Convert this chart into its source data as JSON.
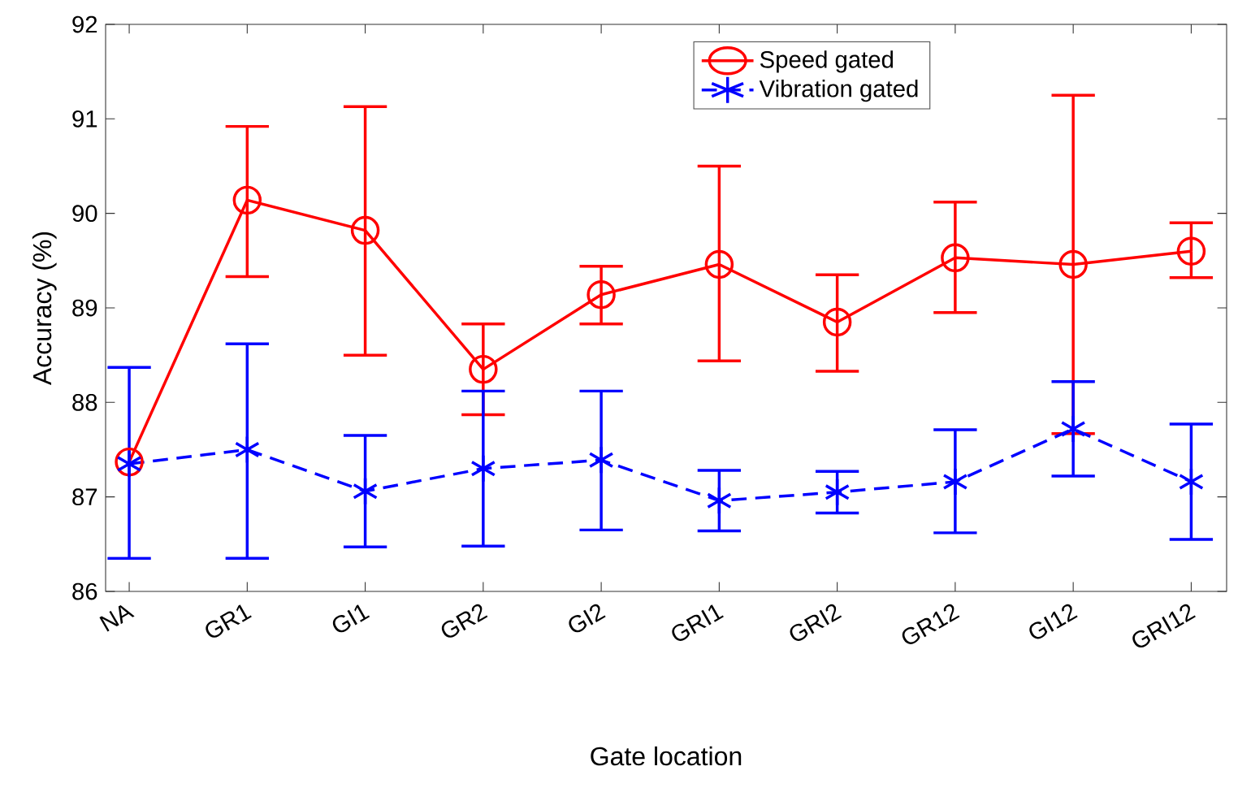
{
  "chart_data": {
    "type": "line",
    "xlabel": "Gate location",
    "ylabel": "Accuracy (%)",
    "categories": [
      "NA",
      "GR1",
      "GI1",
      "GR2",
      "GI2",
      "GRI1",
      "GRI2",
      "GR12",
      "GI12",
      "GRI12"
    ],
    "series": [
      {
        "name": "Speed gated",
        "color": "#ff0000",
        "marker": "circle",
        "line_style": "solid",
        "values": [
          87.37,
          90.14,
          89.82,
          88.35,
          89.14,
          89.46,
          88.85,
          89.53,
          89.46,
          89.6
        ],
        "errors": [
          null,
          [
            89.33,
            90.92
          ],
          [
            88.5,
            91.13
          ],
          [
            87.87,
            88.83
          ],
          [
            88.83,
            89.44
          ],
          [
            88.44,
            90.5
          ],
          [
            88.33,
            89.35
          ],
          [
            88.95,
            90.12
          ],
          [
            87.67,
            91.25
          ],
          [
            89.32,
            89.9
          ]
        ]
      },
      {
        "name": "Vibration gated",
        "color": "#0000ff",
        "marker": "cross",
        "line_style": "dashed",
        "values": [
          87.35,
          87.5,
          87.06,
          87.3,
          87.39,
          86.96,
          87.05,
          87.16,
          87.72,
          87.16
        ],
        "errors": [
          [
            86.35,
            88.37
          ],
          [
            86.35,
            88.62
          ],
          [
            86.47,
            87.65
          ],
          [
            86.48,
            88.12
          ],
          [
            86.65,
            88.12
          ],
          [
            86.64,
            87.28
          ],
          [
            86.83,
            87.27
          ],
          [
            86.62,
            87.71
          ],
          [
            87.22,
            88.22
          ],
          [
            86.55,
            87.77
          ]
        ]
      }
    ],
    "ylim": [
      86,
      92
    ],
    "yticks": [
      86,
      87,
      88,
      89,
      90,
      91,
      92
    ],
    "grid": false,
    "legend": "top"
  }
}
